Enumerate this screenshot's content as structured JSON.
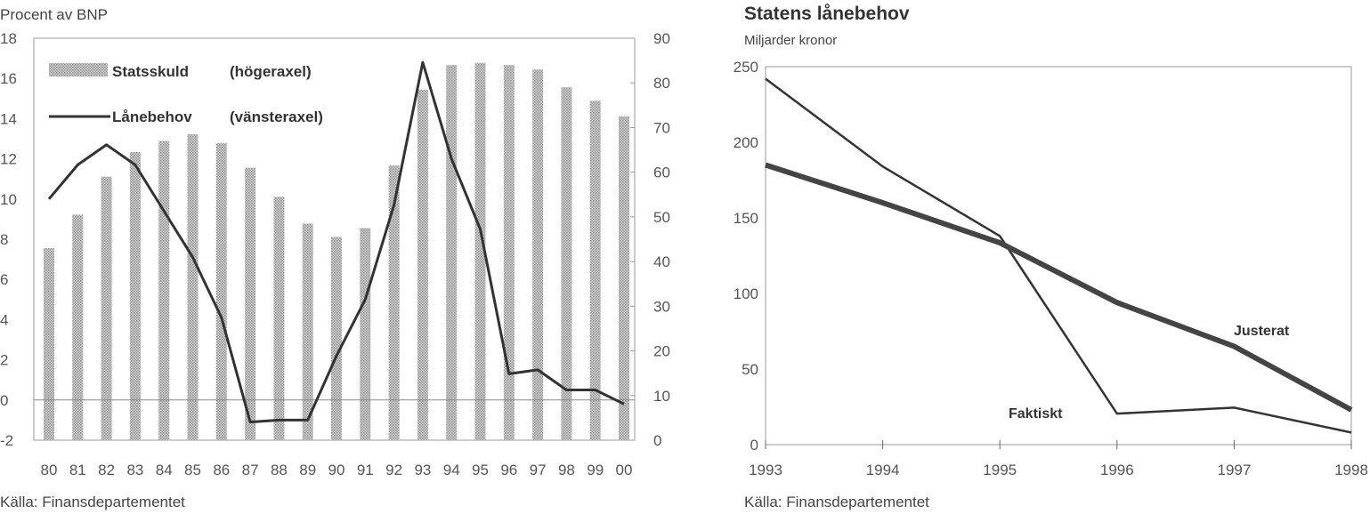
{
  "chart_data": [
    {
      "type": "bar+line",
      "ylabel": "Procent av BNP",
      "source": "Källa: Finansdepartementet",
      "categories": [
        "80",
        "81",
        "82",
        "83",
        "84",
        "85",
        "86",
        "87",
        "88",
        "89",
        "90",
        "91",
        "92",
        "93",
        "94",
        "95",
        "96",
        "97",
        "98",
        "99",
        "00"
      ],
      "ylim_left": [
        -2,
        18
      ],
      "ylim_right": [
        0,
        90
      ],
      "yticks_left": [
        "18",
        "16",
        "14",
        "12",
        "10",
        "8",
        "6",
        "4",
        "2",
        "0",
        "-2"
      ],
      "yticks_right": [
        "90",
        "80",
        "70",
        "60",
        "50",
        "40",
        "30",
        "20",
        "10",
        "0"
      ],
      "series": [
        {
          "name": "Statsskuld",
          "axis_note": "(högeraxel)",
          "type": "bar",
          "values": [
            43,
            50.5,
            59,
            64.5,
            67,
            68.5,
            66.5,
            61,
            54.5,
            48.5,
            45.5,
            47.5,
            61.5,
            78.5,
            84,
            84.5,
            84,
            83,
            79,
            76,
            72.5
          ]
        },
        {
          "name": "Lånebehov",
          "axis_note": "(vänsteraxel)",
          "type": "line",
          "values": [
            10,
            11.7,
            12.7,
            11.7,
            9.4,
            7.1,
            4.1,
            -1.1,
            -1,
            -1,
            2.2,
            5,
            9.7,
            16.8,
            12,
            8.5,
            1.3,
            1.5,
            0.5,
            0.5,
            -0.2
          ]
        }
      ]
    },
    {
      "type": "line",
      "title": "Statens lånebehov",
      "ylabel": "Miljarder kronor",
      "source": "Källa: Finansdepartementet",
      "x": [
        "1993",
        "1994",
        "1995",
        "1996",
        "1997",
        "1998"
      ],
      "ylim": [
        0,
        250
      ],
      "yticks": [
        "250",
        "200",
        "150",
        "100",
        "50",
        "0"
      ],
      "series": [
        {
          "name": "Faktiskt",
          "values": [
            242,
            184,
            138,
            20.5,
            24.5,
            8
          ]
        },
        {
          "name": "Justerat",
          "values": [
            185,
            160,
            133.5,
            94,
            65,
            23
          ]
        }
      ]
    }
  ]
}
